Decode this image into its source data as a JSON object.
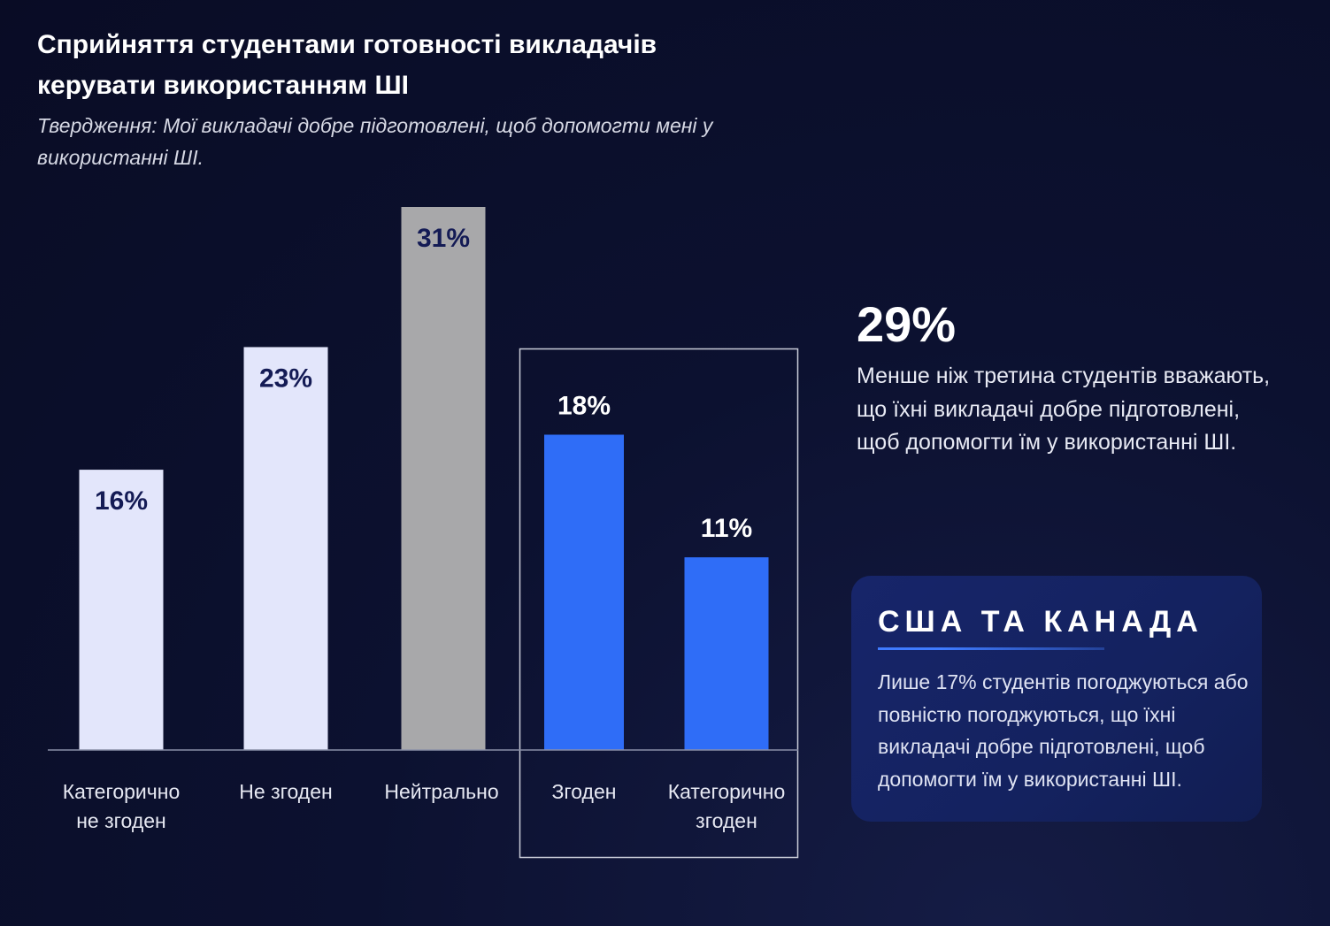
{
  "header": {
    "title": "Сприйняття студентами готовності викладачів керувати використанням ШІ",
    "subtitle": "Твердження: Мої викладачі добре підготовлені, щоб допомогти мені у використанні ШІ."
  },
  "chart_data": {
    "type": "bar",
    "categories": [
      "Категорично не згоден",
      "Не згоден",
      "Нейтрально",
      "Згоден",
      "Категорично згоден"
    ],
    "category_lines": [
      [
        "Категорично",
        "не згоден"
      ],
      [
        "Не згоден"
      ],
      [
        "Нейтрально"
      ],
      [
        "Згоден"
      ],
      [
        "Категорично",
        "згоден"
      ]
    ],
    "values": [
      16,
      23,
      31,
      18,
      11
    ],
    "value_labels": [
      "16%",
      "23%",
      "31%",
      "18%",
      "11%"
    ],
    "ylim": [
      0,
      31
    ],
    "colors": [
      "#e3e6fb",
      "#e3e6fb",
      "#a8a8aa",
      "#2f6df7",
      "#2f6df7"
    ],
    "label_colors": [
      "#141b55",
      "#141b55",
      "#141b55",
      "#ffffff",
      "#ffffff"
    ],
    "label_inside": [
      true,
      true,
      true,
      false,
      false
    ],
    "highlighted_categories": [
      "Згоден",
      "Категорично згоден"
    ],
    "axis_color": "#8a8fa8",
    "highlight_box_color": "#c9ccd8"
  },
  "stat": {
    "value": "29%",
    "text": "Менше ніж третина студентів вважають, що їхні викладачі добре підготовлені, щоб допомогти їм у використанні ШІ."
  },
  "callout": {
    "title": "США ТА КАНАДА",
    "text": "Лише 17% студентів погоджуються або повністю погоджуються, що їхні викладачі добре підготовлені, щоб допомогти їм у використанні ШІ.",
    "accent_color": "#3f7bff"
  }
}
